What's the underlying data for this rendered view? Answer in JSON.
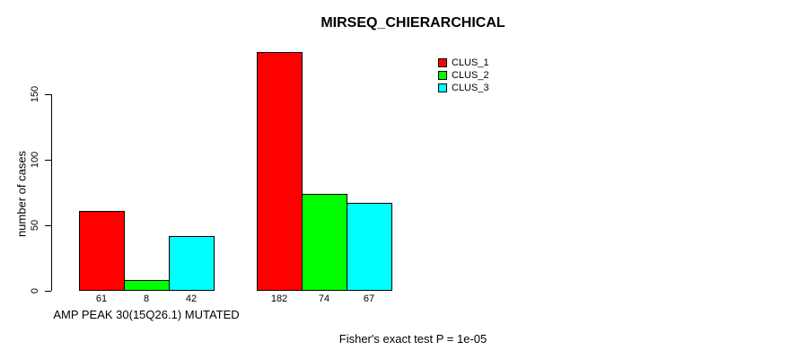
{
  "title": "MIRSEQ_CHIERARCHICAL",
  "y_axis_label": "number of cases",
  "group_label": "AMP PEAK 30(15Q26.1) MUTATED",
  "footnote": "Fisher's exact test P = 1e-05",
  "colors": {
    "clus_1": "#ff0000",
    "clus_2": "#00ff00",
    "clus_3": "#00ffff",
    "axis": "#000000",
    "background": "#ffffff"
  },
  "legend": {
    "items": [
      {
        "label": "CLUS_1",
        "color": "#ff0000"
      },
      {
        "label": "CLUS_2",
        "color": "#00ff00"
      },
      {
        "label": "CLUS_3",
        "color": "#00ffff"
      }
    ],
    "position": "top-right"
  },
  "chart_data": {
    "type": "bar",
    "title": "MIRSEQ_CHIERARCHICAL",
    "ylabel": "number of cases",
    "xlabel": "AMP PEAK 30(15Q26.1) MUTATED",
    "ylim": [
      0,
      150
    ],
    "yticks": [
      0,
      50,
      100,
      150
    ],
    "grid": false,
    "categories": [
      "AMP PEAK 30(15Q26.1) MUTATED",
      ""
    ],
    "series": [
      {
        "name": "CLUS_1",
        "color": "#ff0000",
        "values": [
          61,
          182
        ]
      },
      {
        "name": "CLUS_2",
        "color": "#00ff00",
        "values": [
          8,
          74
        ]
      },
      {
        "name": "CLUS_3",
        "color": "#00ffff",
        "values": [
          42,
          67
        ]
      }
    ],
    "bar_value_labels": [
      [
        61,
        8,
        42
      ],
      [
        182,
        74,
        67
      ]
    ],
    "legend_entries": [
      "CLUS_1",
      "CLUS_2",
      "CLUS_3"
    ],
    "legend_position": "top-right",
    "annotation": "Fisher's exact test P = 1e-05"
  }
}
